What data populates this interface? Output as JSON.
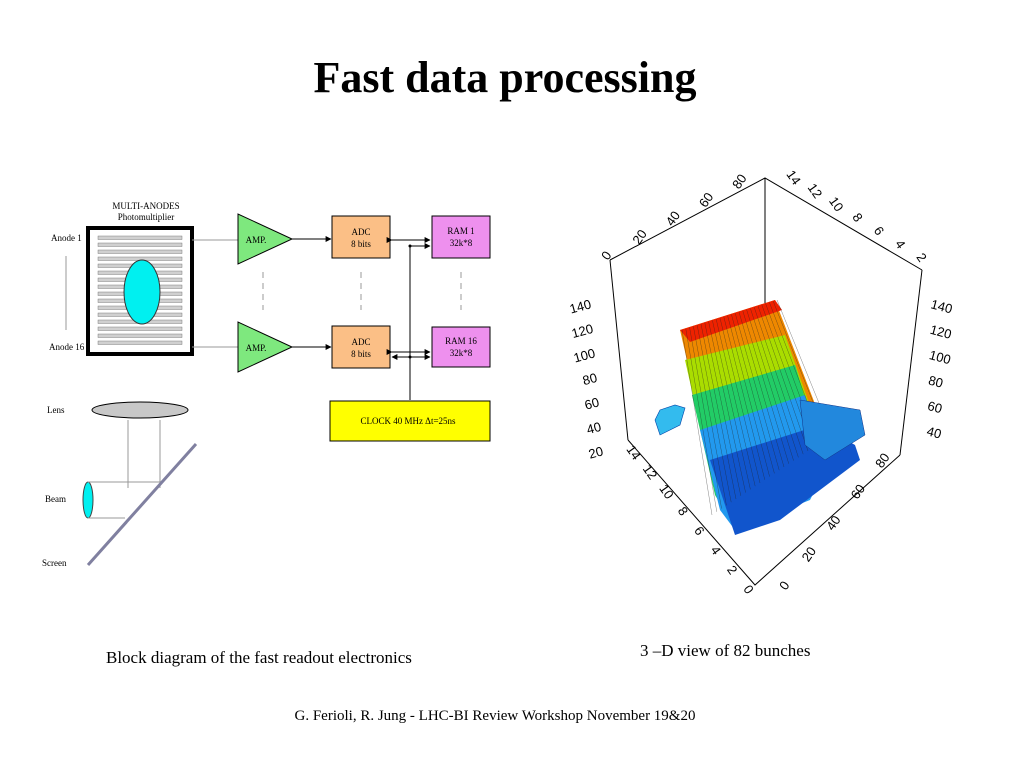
{
  "title": "Fast data processing",
  "block_diagram": {
    "pm_title_line1": "MULTI-ANODES",
    "pm_title_line2": "Photomultiplier",
    "anode_first": "Anode 1",
    "anode_last": "Anode 16",
    "amp_label": "AMP.",
    "adc_line1": "ADC",
    "adc_line2": "8 bits",
    "ram_top_line1": "RAM 1",
    "ram_top_line2": "32k*8",
    "ram_bottom_line1": "RAM 16",
    "ram_bottom_line2": "32k*8",
    "clock_label": "CLOCK 40 MHz   Δt=25ns",
    "lens_label": "Lens",
    "beam_label": "Beam",
    "screen_label": "Screen",
    "caption": "Block diagram of the fast readout electronics"
  },
  "plot3d": {
    "caption": "3 –D view of 82 bunches",
    "top_axis_ticks": [
      "0",
      "20",
      "40",
      "60",
      "80"
    ],
    "right_top_axis_ticks": [
      "14",
      "12",
      "10",
      "8",
      "6",
      "4",
      "2"
    ],
    "left_vertical_ticks": [
      "140",
      "120",
      "100",
      "80",
      "60",
      "40",
      "20"
    ],
    "right_vertical_ticks": [
      "140",
      "120",
      "100",
      "80",
      "60",
      "40"
    ],
    "bottom_left_axis_ticks": [
      "14",
      "12",
      "10",
      "8",
      "6",
      "4",
      "2",
      "0"
    ],
    "bottom_right_axis_ticks": [
      "0",
      "20",
      "40",
      "60",
      "80"
    ]
  },
  "colors": {
    "amp": "#7ee87e",
    "adc": "#fbbf86",
    "ram": "#ee90ee",
    "clock": "#ffff00",
    "pm_spot": "#00f0f0",
    "lens": "#c8c8c8",
    "screen": "#8080a0"
  },
  "footer": "G. Ferioli, R. Jung -  LHC-BI Review Workshop November 19&20"
}
